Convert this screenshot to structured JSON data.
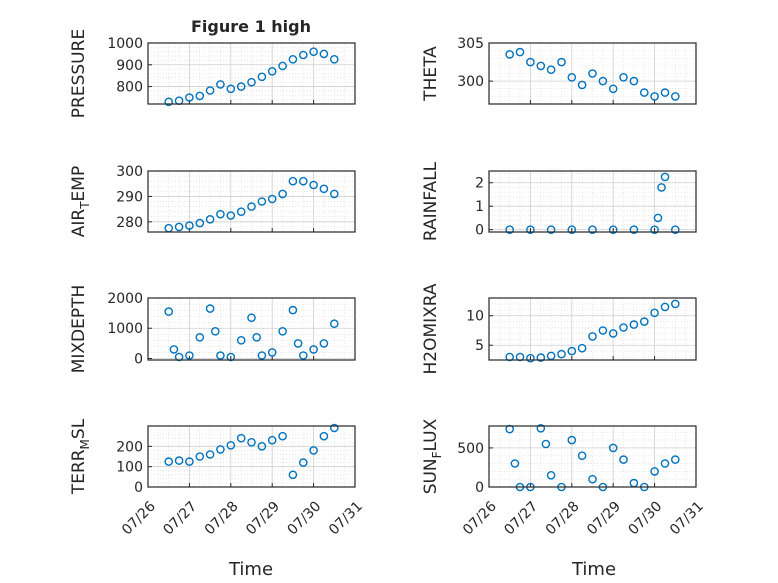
{
  "figure": {
    "title": "Figure 1 high",
    "x_tick_labels": [
      "07/26",
      "07/27",
      "07/28",
      "07/29",
      "07/30",
      "07/31"
    ],
    "x_label": "Time",
    "marker_color": "#0072BD",
    "axis_color": "#262626",
    "grid_color": "#d9d9d9"
  },
  "chart_data": [
    {
      "type": "scatter",
      "ylabel": "PRESSURE",
      "ylim": [
        720,
        1000
      ],
      "yticks": [
        800,
        900,
        1000
      ],
      "grid": true,
      "x": [
        "07/26 12:00",
        "07/26 18:00",
        "07/27 00:00",
        "07/27 06:00",
        "07/27 12:00",
        "07/27 18:00",
        "07/28 00:00",
        "07/28 06:00",
        "07/28 12:00",
        "07/28 18:00",
        "07/29 00:00",
        "07/29 06:00",
        "07/29 12:00",
        "07/29 18:00",
        "07/30 00:00",
        "07/30 06:00",
        "07/30 12:00"
      ],
      "values": [
        730,
        735,
        750,
        757,
        782,
        810,
        790,
        800,
        820,
        845,
        870,
        895,
        925,
        945,
        960,
        950,
        925
      ]
    },
    {
      "type": "scatter",
      "ylabel": "THETA",
      "ylim": [
        297,
        305
      ],
      "yticks": [
        300,
        305
      ],
      "grid": true,
      "x": [
        "07/26 12:00",
        "07/26 18:00",
        "07/27 00:00",
        "07/27 06:00",
        "07/27 12:00",
        "07/27 18:00",
        "07/28 00:00",
        "07/28 06:00",
        "07/28 12:00",
        "07/28 18:00",
        "07/29 00:00",
        "07/29 06:00",
        "07/29 12:00",
        "07/29 18:00",
        "07/30 00:00",
        "07/30 06:00",
        "07/30 12:00"
      ],
      "values": [
        303.5,
        303.8,
        302.5,
        302.0,
        301.5,
        302.5,
        300.5,
        299.5,
        301.0,
        300.0,
        299.0,
        300.5,
        300.0,
        298.5,
        298.0,
        298.5,
        298.0
      ]
    },
    {
      "type": "scatter",
      "ylabel": "AIR_TEMP",
      "ylim": [
        276,
        300
      ],
      "yticks": [
        280,
        290,
        300
      ],
      "grid": true,
      "x": [
        "07/26 12:00",
        "07/26 18:00",
        "07/27 00:00",
        "07/27 06:00",
        "07/27 12:00",
        "07/27 18:00",
        "07/28 00:00",
        "07/28 06:00",
        "07/28 12:00",
        "07/28 18:00",
        "07/29 00:00",
        "07/29 06:00",
        "07/29 12:00",
        "07/29 18:00",
        "07/30 00:00",
        "07/30 06:00",
        "07/30 12:00"
      ],
      "values": [
        277.5,
        278,
        278.5,
        279.5,
        281,
        283,
        282.5,
        284,
        286,
        288,
        289,
        291,
        296,
        296,
        294.5,
        293,
        291
      ]
    },
    {
      "type": "scatter",
      "ylabel": "RAINFALL",
      "ylim": [
        -0.1,
        2.5
      ],
      "yticks": [
        0,
        1,
        2
      ],
      "grid": true,
      "x": [
        "07/26 12:00",
        "07/27 00:00",
        "07/27 12:00",
        "07/28 00:00",
        "07/28 12:00",
        "07/29 00:00",
        "07/29 12:00",
        "07/30 00:00",
        "07/30 02:00",
        "07/30 04:00",
        "07/30 06:00",
        "07/30 12:00"
      ],
      "values": [
        0,
        0,
        0,
        0,
        0,
        0,
        0,
        0,
        0.5,
        1.8,
        2.25,
        0
      ]
    },
    {
      "type": "scatter",
      "ylabel": "MIXDEPTH",
      "ylim": [
        -50,
        2000
      ],
      "yticks": [
        0,
        1000,
        2000
      ],
      "grid": true,
      "x": [
        "07/26 12:00",
        "07/26 15:00",
        "07/26 18:00",
        "07/27 00:00",
        "07/27 06:00",
        "07/27 12:00",
        "07/27 15:00",
        "07/27 18:00",
        "07/28 00:00",
        "07/28 06:00",
        "07/28 12:00",
        "07/28 15:00",
        "07/28 18:00",
        "07/29 00:00",
        "07/29 06:00",
        "07/29 12:00",
        "07/29 15:00",
        "07/29 18:00",
        "07/30 00:00",
        "07/30 06:00",
        "07/30 12:00"
      ],
      "values": [
        1550,
        300,
        50,
        100,
        700,
        1650,
        900,
        100,
        50,
        600,
        1350,
        700,
        100,
        200,
        900,
        1600,
        500,
        100,
        300,
        500,
        1150
      ]
    },
    {
      "type": "scatter",
      "ylabel": "H2OMIXRA",
      "ylim": [
        2.5,
        13
      ],
      "yticks": [
        5,
        10
      ],
      "grid": true,
      "x": [
        "07/26 12:00",
        "07/26 18:00",
        "07/27 00:00",
        "07/27 06:00",
        "07/27 12:00",
        "07/27 18:00",
        "07/28 00:00",
        "07/28 06:00",
        "07/28 12:00",
        "07/28 18:00",
        "07/29 00:00",
        "07/29 06:00",
        "07/29 12:00",
        "07/29 18:00",
        "07/30 00:00",
        "07/30 06:00",
        "07/30 12:00"
      ],
      "values": [
        3,
        3,
        2.8,
        2.9,
        3.2,
        3.5,
        4,
        4.5,
        6.5,
        7.5,
        7,
        8,
        8.5,
        9,
        10.5,
        11.5,
        12
      ]
    },
    {
      "type": "scatter",
      "ylabel": "TERR_MSL",
      "ylim": [
        0,
        300
      ],
      "yticks": [
        0,
        100,
        200
      ],
      "grid": true,
      "x": [
        "07/26 12:00",
        "07/26 18:00",
        "07/27 00:00",
        "07/27 06:00",
        "07/27 12:00",
        "07/27 18:00",
        "07/28 00:00",
        "07/28 06:00",
        "07/28 12:00",
        "07/28 18:00",
        "07/29 00:00",
        "07/29 06:00",
        "07/29 12:00",
        "07/29 18:00",
        "07/30 00:00",
        "07/30 06:00",
        "07/30 12:00"
      ],
      "values": [
        125,
        130,
        125,
        150,
        160,
        185,
        205,
        240,
        220,
        200,
        230,
        250,
        60,
        120,
        180,
        250,
        290
      ]
    },
    {
      "type": "scatter",
      "ylabel": "SUN_FLUX",
      "ylim": [
        0,
        780
      ],
      "yticks": [
        0,
        500
      ],
      "grid": true,
      "x": [
        "07/26 12:00",
        "07/26 15:00",
        "07/26 18:00",
        "07/27 00:00",
        "07/27 06:00",
        "07/27 09:00",
        "07/27 12:00",
        "07/27 18:00",
        "07/28 00:00",
        "07/28 06:00",
        "07/28 12:00",
        "07/28 18:00",
        "07/29 00:00",
        "07/29 06:00",
        "07/29 12:00",
        "07/29 18:00",
        "07/30 00:00",
        "07/30 06:00",
        "07/30 12:00"
      ],
      "values": [
        740,
        300,
        0,
        0,
        750,
        550,
        150,
        0,
        600,
        400,
        100,
        0,
        500,
        350,
        50,
        0,
        200,
        300,
        350
      ]
    }
  ]
}
